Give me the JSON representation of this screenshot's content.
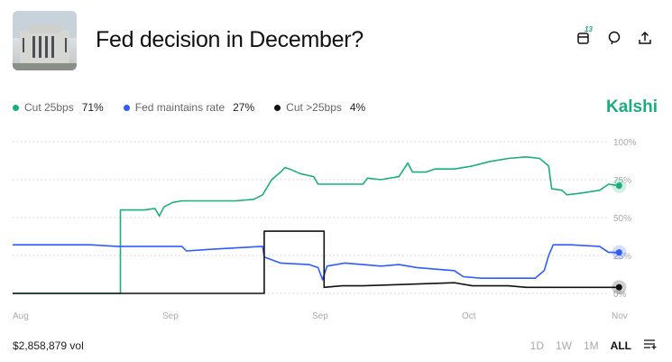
{
  "header": {
    "title": "Fed decision in December?",
    "calendar_badge": "13"
  },
  "legend": [
    {
      "label": "Cut 25bps",
      "value": "71%",
      "color": "#1aae7e"
    },
    {
      "label": "Fed maintains rate",
      "value": "27%",
      "color": "#2e5bff"
    },
    {
      "label": "Cut >25bps",
      "value": "4%",
      "color": "#111111"
    }
  ],
  "brand": "Kalshi",
  "footer": {
    "volume": "$2,858,879 vol",
    "ranges": [
      "1D",
      "1W",
      "1M",
      "ALL"
    ],
    "active_range": "ALL"
  },
  "chart_data": {
    "type": "line",
    "title": "Fed decision in December?",
    "x_tick_labels": [
      "Aug",
      "Sep",
      "Sep",
      "Oct",
      "Nov"
    ],
    "x_unit": "label index (0=Aug … 4=Nov)",
    "y_tick_labels": [
      "100%",
      "75%",
      "50%",
      "25%",
      "0%"
    ],
    "ylim": [
      0,
      100
    ],
    "grid": true,
    "series": [
      {
        "name": "Cut 25bps",
        "color": "#1aae7e",
        "x": [
          0,
          0.72,
          0.72,
          0.88,
          0.95,
          0.98,
          1.01,
          1.07,
          1.13,
          1.31,
          1.49,
          1.61,
          1.67,
          1.7,
          1.73,
          1.79,
          1.82,
          1.85,
          1.92,
          2.01,
          2.04,
          2.1,
          2.34,
          2.37,
          2.46,
          2.58,
          2.64,
          2.67,
          2.76,
          2.82,
          2.95,
          3.07,
          3.19,
          3.31,
          3.43,
          3.52,
          3.58,
          3.6,
          3.67,
          3.7,
          3.79,
          3.92,
          3.98,
          4.05
        ],
        "y": [
          0,
          0,
          55,
          55,
          56,
          51,
          57,
          60,
          61,
          61,
          61,
          62,
          65,
          70,
          75,
          80,
          83,
          82,
          79,
          77,
          72,
          72,
          72,
          76,
          75,
          77,
          86,
          80,
          80,
          82,
          82,
          84,
          87,
          89,
          90,
          89,
          84,
          69,
          68,
          65,
          66,
          68,
          72,
          71
        ]
      },
      {
        "name": "Fed maintains rate",
        "color": "#2e5bff",
        "x": [
          0,
          0.22,
          0.52,
          0.7,
          0.88,
          1.13,
          1.16,
          1.31,
          1.49,
          1.67,
          1.68,
          1.79,
          1.98,
          2.04,
          2.07,
          2.1,
          2.22,
          2.34,
          2.46,
          2.58,
          2.7,
          2.82,
          2.95,
          3.01,
          3.13,
          3.31,
          3.49,
          3.55,
          3.58,
          3.61,
          3.73,
          3.92,
          3.98,
          4.05
        ],
        "y": [
          32,
          32,
          32,
          31,
          31,
          31,
          28,
          29,
          30,
          31,
          24,
          20,
          19,
          17,
          9,
          18,
          20,
          19,
          18,
          19,
          17,
          16,
          15,
          11,
          10,
          10,
          10,
          15,
          25,
          32,
          32,
          31,
          27,
          27
        ]
      },
      {
        "name": "Cut >25bps",
        "color": "#111111",
        "x": [
          0,
          1.68,
          1.68,
          2.08,
          2.08,
          2.2,
          2.34,
          2.64,
          2.95,
          3.07,
          3.31,
          3.43,
          4.05
        ],
        "y": [
          0,
          0,
          41,
          41,
          4,
          5,
          5,
          6,
          7,
          5,
          5,
          4,
          4
        ]
      }
    ]
  }
}
